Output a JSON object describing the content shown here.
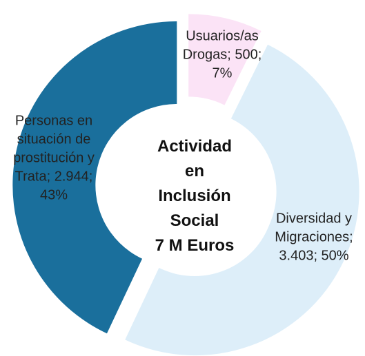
{
  "chart_data": {
    "type": "donut",
    "title": "Actividad en Inclusión Social",
    "subtitle": "7 M Euros",
    "values": [
      500,
      3403,
      2944
    ],
    "value_labels": [
      "Usuarios/as Drogas; 500; 7%",
      "Diversidad y Migraciones; 3.403; 50%",
      "Personas en situación de prostitución y Trata; 2.944; 43%"
    ],
    "colors": [
      "#fbe3f6",
      "#ddeef9",
      "#1a6f9c"
    ]
  }
}
